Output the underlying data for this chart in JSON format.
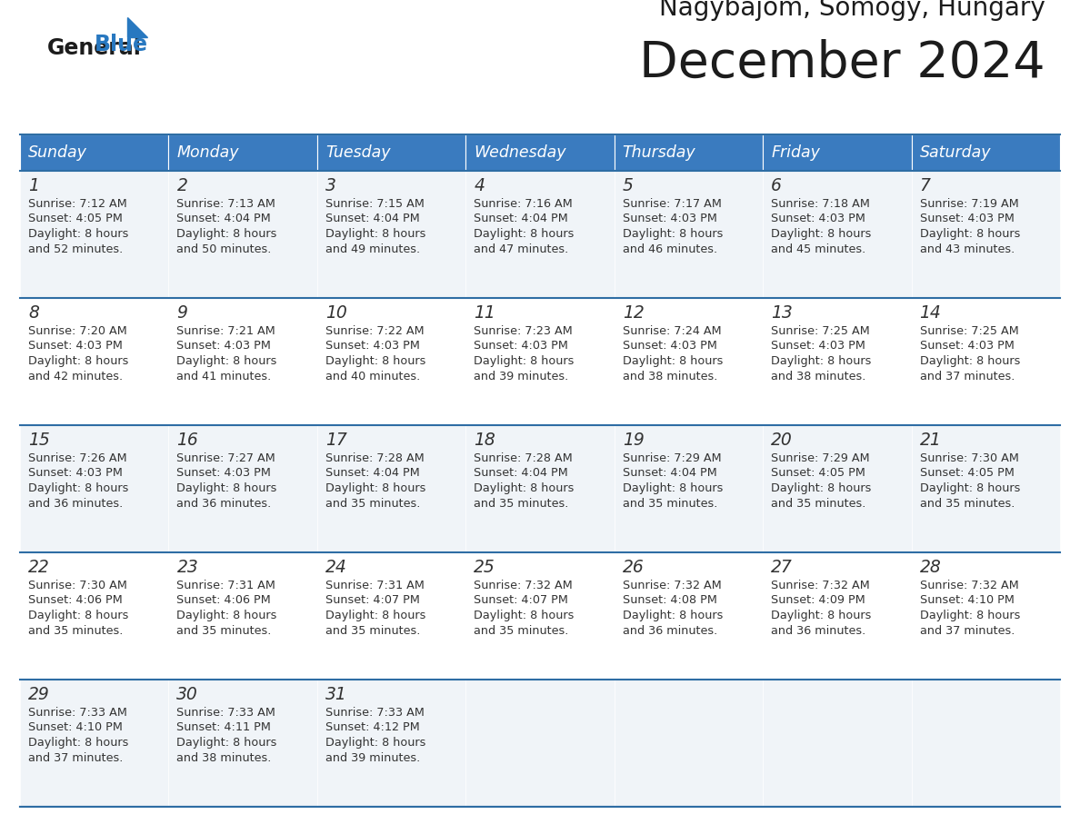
{
  "title": "December 2024",
  "subtitle": "Nagybajom, Somogy, Hungary",
  "days_of_week": [
    "Sunday",
    "Monday",
    "Tuesday",
    "Wednesday",
    "Thursday",
    "Friday",
    "Saturday"
  ],
  "header_bg_color": "#3a7bbf",
  "header_text_color": "#ffffff",
  "cell_bg_odd": "#f0f4f8",
  "cell_bg_even": "#ffffff",
  "border_color": "#2e6da4",
  "text_color": "#333333",
  "logo_blue": "#2878c0",
  "calendar_data": [
    [
      {
        "day": 1,
        "sunrise": "7:12 AM",
        "sunset": "4:05 PM",
        "daylight_h": "8 hours",
        "daylight_m": "and 52 minutes."
      },
      {
        "day": 2,
        "sunrise": "7:13 AM",
        "sunset": "4:04 PM",
        "daylight_h": "8 hours",
        "daylight_m": "and 50 minutes."
      },
      {
        "day": 3,
        "sunrise": "7:15 AM",
        "sunset": "4:04 PM",
        "daylight_h": "8 hours",
        "daylight_m": "and 49 minutes."
      },
      {
        "day": 4,
        "sunrise": "7:16 AM",
        "sunset": "4:04 PM",
        "daylight_h": "8 hours",
        "daylight_m": "and 47 minutes."
      },
      {
        "day": 5,
        "sunrise": "7:17 AM",
        "sunset": "4:03 PM",
        "daylight_h": "8 hours",
        "daylight_m": "and 46 minutes."
      },
      {
        "day": 6,
        "sunrise": "7:18 AM",
        "sunset": "4:03 PM",
        "daylight_h": "8 hours",
        "daylight_m": "and 45 minutes."
      },
      {
        "day": 7,
        "sunrise": "7:19 AM",
        "sunset": "4:03 PM",
        "daylight_h": "8 hours",
        "daylight_m": "and 43 minutes."
      }
    ],
    [
      {
        "day": 8,
        "sunrise": "7:20 AM",
        "sunset": "4:03 PM",
        "daylight_h": "8 hours",
        "daylight_m": "and 42 minutes."
      },
      {
        "day": 9,
        "sunrise": "7:21 AM",
        "sunset": "4:03 PM",
        "daylight_h": "8 hours",
        "daylight_m": "and 41 minutes."
      },
      {
        "day": 10,
        "sunrise": "7:22 AM",
        "sunset": "4:03 PM",
        "daylight_h": "8 hours",
        "daylight_m": "and 40 minutes."
      },
      {
        "day": 11,
        "sunrise": "7:23 AM",
        "sunset": "4:03 PM",
        "daylight_h": "8 hours",
        "daylight_m": "and 39 minutes."
      },
      {
        "day": 12,
        "sunrise": "7:24 AM",
        "sunset": "4:03 PM",
        "daylight_h": "8 hours",
        "daylight_m": "and 38 minutes."
      },
      {
        "day": 13,
        "sunrise": "7:25 AM",
        "sunset": "4:03 PM",
        "daylight_h": "8 hours",
        "daylight_m": "and 38 minutes."
      },
      {
        "day": 14,
        "sunrise": "7:25 AM",
        "sunset": "4:03 PM",
        "daylight_h": "8 hours",
        "daylight_m": "and 37 minutes."
      }
    ],
    [
      {
        "day": 15,
        "sunrise": "7:26 AM",
        "sunset": "4:03 PM",
        "daylight_h": "8 hours",
        "daylight_m": "and 36 minutes."
      },
      {
        "day": 16,
        "sunrise": "7:27 AM",
        "sunset": "4:03 PM",
        "daylight_h": "8 hours",
        "daylight_m": "and 36 minutes."
      },
      {
        "day": 17,
        "sunrise": "7:28 AM",
        "sunset": "4:04 PM",
        "daylight_h": "8 hours",
        "daylight_m": "and 35 minutes."
      },
      {
        "day": 18,
        "sunrise": "7:28 AM",
        "sunset": "4:04 PM",
        "daylight_h": "8 hours",
        "daylight_m": "and 35 minutes."
      },
      {
        "day": 19,
        "sunrise": "7:29 AM",
        "sunset": "4:04 PM",
        "daylight_h": "8 hours",
        "daylight_m": "and 35 minutes."
      },
      {
        "day": 20,
        "sunrise": "7:29 AM",
        "sunset": "4:05 PM",
        "daylight_h": "8 hours",
        "daylight_m": "and 35 minutes."
      },
      {
        "day": 21,
        "sunrise": "7:30 AM",
        "sunset": "4:05 PM",
        "daylight_h": "8 hours",
        "daylight_m": "and 35 minutes."
      }
    ],
    [
      {
        "day": 22,
        "sunrise": "7:30 AM",
        "sunset": "4:06 PM",
        "daylight_h": "8 hours",
        "daylight_m": "and 35 minutes."
      },
      {
        "day": 23,
        "sunrise": "7:31 AM",
        "sunset": "4:06 PM",
        "daylight_h": "8 hours",
        "daylight_m": "and 35 minutes."
      },
      {
        "day": 24,
        "sunrise": "7:31 AM",
        "sunset": "4:07 PM",
        "daylight_h": "8 hours",
        "daylight_m": "and 35 minutes."
      },
      {
        "day": 25,
        "sunrise": "7:32 AM",
        "sunset": "4:07 PM",
        "daylight_h": "8 hours",
        "daylight_m": "and 35 minutes."
      },
      {
        "day": 26,
        "sunrise": "7:32 AM",
        "sunset": "4:08 PM",
        "daylight_h": "8 hours",
        "daylight_m": "and 36 minutes."
      },
      {
        "day": 27,
        "sunrise": "7:32 AM",
        "sunset": "4:09 PM",
        "daylight_h": "8 hours",
        "daylight_m": "and 36 minutes."
      },
      {
        "day": 28,
        "sunrise": "7:32 AM",
        "sunset": "4:10 PM",
        "daylight_h": "8 hours",
        "daylight_m": "and 37 minutes."
      }
    ],
    [
      {
        "day": 29,
        "sunrise": "7:33 AM",
        "sunset": "4:10 PM",
        "daylight_h": "8 hours",
        "daylight_m": "and 37 minutes."
      },
      {
        "day": 30,
        "sunrise": "7:33 AM",
        "sunset": "4:11 PM",
        "daylight_h": "8 hours",
        "daylight_m": "and 38 minutes."
      },
      {
        "day": 31,
        "sunrise": "7:33 AM",
        "sunset": "4:12 PM",
        "daylight_h": "8 hours",
        "daylight_m": "and 39 minutes."
      },
      null,
      null,
      null,
      null
    ]
  ]
}
